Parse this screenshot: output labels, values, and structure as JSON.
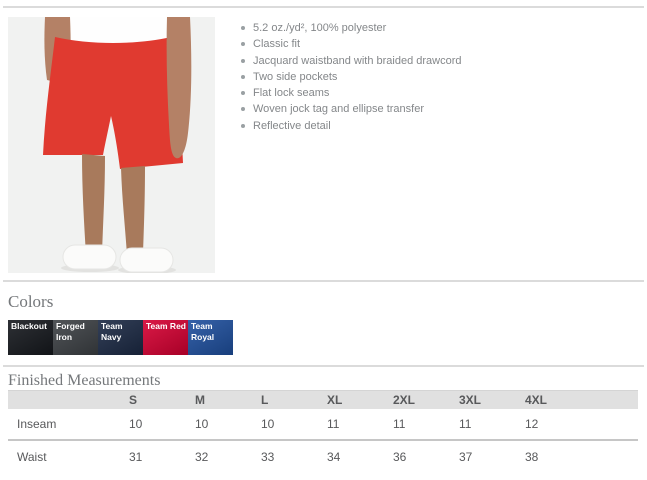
{
  "product_section": {
    "image_alt": "Model wearing red athletic shorts with white shirt and white sneakers",
    "features": [
      "5.2 oz./yd², 100% polyester",
      "Classic fit",
      "Jacquard waistband with braided drawcord",
      "Two side pockets",
      "Flat lock seams",
      "Woven jock tag and ellipse transfer",
      "Reflective detail"
    ]
  },
  "colors_section": {
    "heading": "Colors",
    "swatches": [
      {
        "name": "Blackout",
        "hex": "#16191e"
      },
      {
        "name": "Forged Iron",
        "hex": "#3d4145"
      },
      {
        "name": "Team Navy",
        "hex": "#1c2a45"
      },
      {
        "name": "Team Red",
        "hex": "#d60032"
      },
      {
        "name": "Team Royal",
        "hex": "#1f509f"
      }
    ]
  },
  "measurements_section": {
    "heading": "Finished Measurements",
    "columns": [
      "",
      "S",
      "M",
      "L",
      "XL",
      "2XL",
      "3XL",
      "4XL"
    ],
    "rows": [
      {
        "label": "Inseam",
        "values": [
          "10",
          "10",
          "10",
          "11",
          "11",
          "11",
          "12"
        ]
      },
      {
        "label": "Waist",
        "values": [
          "31",
          "32",
          "33",
          "34",
          "36",
          "37",
          "38"
        ]
      }
    ]
  }
}
